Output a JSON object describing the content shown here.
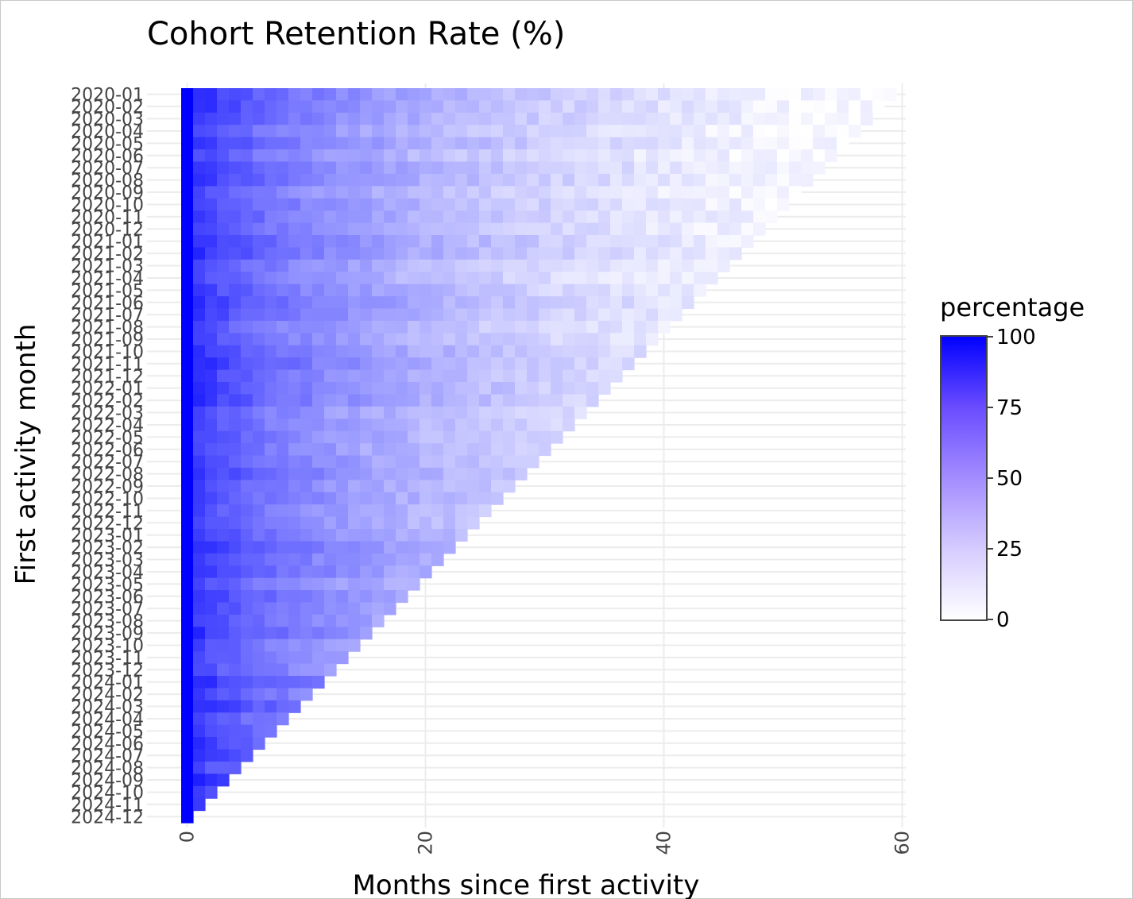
{
  "chart_data": {
    "type": "heatmap",
    "title": "Cohort Retention Rate (%)",
    "xlabel": "Months since first activity",
    "ylabel": "First activity month",
    "x_ticks": [
      0,
      20,
      40,
      60
    ],
    "xlim": [
      -0.5,
      60
    ],
    "cohorts": [
      "2020-01",
      "2020-02",
      "2020-03",
      "2020-04",
      "2020-05",
      "2020-06",
      "2020-07",
      "2020-08",
      "2020-09",
      "2020-10",
      "2020-11",
      "2020-12",
      "2021-01",
      "2021-02",
      "2021-03",
      "2021-04",
      "2021-05",
      "2021-06",
      "2021-07",
      "2021-08",
      "2021-09",
      "2021-10",
      "2021-11",
      "2021-12",
      "2022-01",
      "2022-02",
      "2022-03",
      "2022-04",
      "2022-05",
      "2022-06",
      "2022-07",
      "2022-08",
      "2022-09",
      "2022-10",
      "2022-11",
      "2022-12",
      "2023-01",
      "2023-02",
      "2023-03",
      "2023-04",
      "2023-05",
      "2023-06",
      "2023-07",
      "2023-08",
      "2023-09",
      "2023-10",
      "2023-11",
      "2023-12",
      "2024-01",
      "2024-02",
      "2024-03",
      "2024-04",
      "2024-05",
      "2024-06",
      "2024-07",
      "2024-08",
      "2024-09",
      "2024-10",
      "2024-11",
      "2024-12"
    ],
    "retention_profile": {
      "month_0": 100,
      "months": [
        0,
        1,
        3,
        6,
        10,
        15,
        20,
        25,
        30,
        40,
        50,
        59
      ],
      "values": [
        100,
        78,
        68,
        58,
        48,
        38,
        30,
        24,
        18,
        10,
        4,
        1
      ]
    },
    "colorscale": {
      "low": "#ffffff",
      "high": "#0000ff",
      "range": [
        0,
        100
      ],
      "ticks": [
        0,
        25,
        50,
        75,
        100
      ]
    },
    "legend_title": "percentage",
    "legend_position": "right",
    "grid": true,
    "tick_labels": {
      "x": [
        "0",
        "20",
        "40",
        "60"
      ],
      "colorbar": [
        "0",
        "25",
        "50",
        "75",
        "100"
      ]
    }
  }
}
